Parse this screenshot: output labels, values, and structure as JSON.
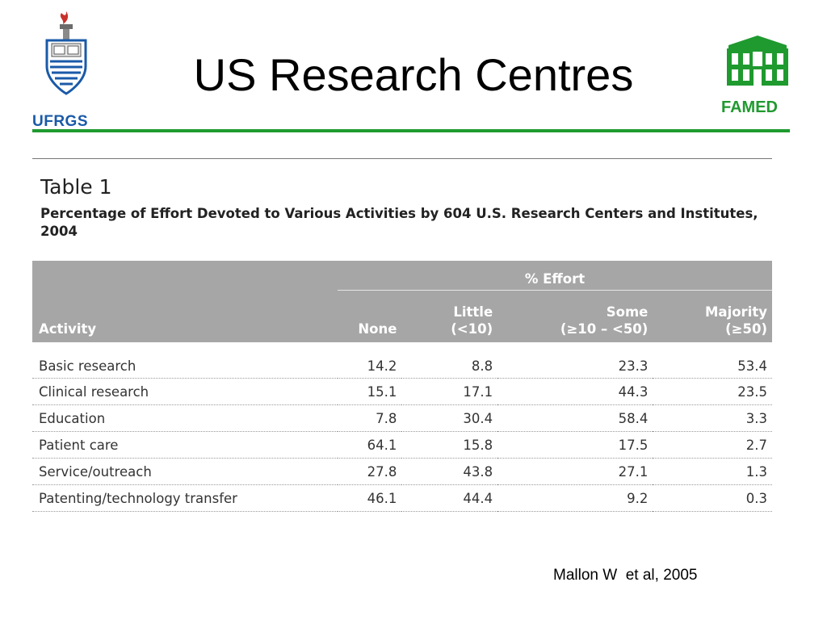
{
  "slide": {
    "title": "US Research Centres",
    "logo_left": {
      "text": "UFRGS",
      "icon": "ufrgs-crest-icon",
      "color": "#1a5aa8"
    },
    "logo_right": {
      "text": "FAMED",
      "icon": "famed-building-icon",
      "color": "#1f9a2f"
    },
    "accent_color": "#1f9a2f",
    "citation": "Mallon W  et al, 2005"
  },
  "table": {
    "label": "Table 1",
    "caption": "Percentage of Effort Devoted to Various Activities by 604 U.S. Research Centers and Institutes, 2004",
    "group_header": "% Effort",
    "header_bg": "#a6a6a6",
    "columns": [
      {
        "line1": "",
        "line2": "Activity"
      },
      {
        "line1": "",
        "line2": "None"
      },
      {
        "line1": "Little",
        "line2": "(<10)"
      },
      {
        "line1": "Some",
        "line2": "(≥10 – <50)"
      },
      {
        "line1": "Majority",
        "line2": "(≥50)"
      }
    ],
    "rows": [
      {
        "activity": "Basic research",
        "none": "14.2",
        "little": "8.8",
        "some": "23.3",
        "majority": "53.4"
      },
      {
        "activity": "Clinical research",
        "none": "15.1",
        "little": "17.1",
        "some": "44.3",
        "majority": "23.5"
      },
      {
        "activity": "Education",
        "none": "7.8",
        "little": "30.4",
        "some": "58.4",
        "majority": "3.3"
      },
      {
        "activity": "Patient care",
        "none": "64.1",
        "little": "15.8",
        "some": "17.5",
        "majority": "2.7"
      },
      {
        "activity": "Service/outreach",
        "none": "27.8",
        "little": "43.8",
        "some": "27.1",
        "majority": "1.3"
      },
      {
        "activity": "Patenting/technology transfer",
        "none": "46.1",
        "little": "44.4",
        "some": "9.2",
        "majority": "0.3"
      }
    ]
  }
}
